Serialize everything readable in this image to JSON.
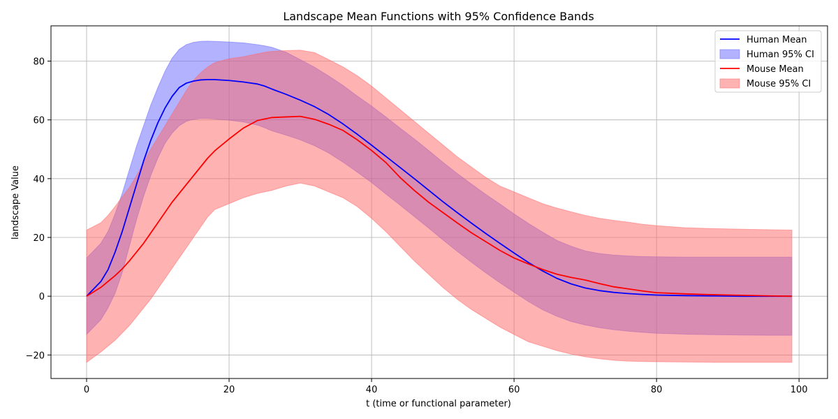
{
  "chart_data": {
    "type": "line",
    "title": "Landscape Mean Functions with 95% Confidence Bands",
    "xlabel": "t (time or functional parameter)",
    "ylabel": "landscape Value",
    "xlim": [
      -5,
      104
    ],
    "ylim": [
      -28,
      92
    ],
    "x_ticks": [
      0,
      20,
      40,
      60,
      80,
      100
    ],
    "y_ticks": [
      -20,
      0,
      20,
      40,
      60,
      80
    ],
    "grid": true,
    "legend_position": "top-right",
    "x": [
      0,
      2,
      3,
      4,
      5,
      6,
      7,
      8,
      9,
      10,
      11,
      12,
      13,
      14,
      15,
      16,
      17,
      18,
      20,
      22,
      24,
      25,
      26,
      28,
      30,
      32,
      34,
      36,
      38,
      40,
      42,
      44,
      46,
      48,
      50,
      52,
      54,
      56,
      58,
      60,
      62,
      64,
      66,
      68,
      70,
      72,
      74,
      76,
      78,
      80,
      84,
      88,
      92,
      96,
      99
    ],
    "series": [
      {
        "name": "Human Mean",
        "kind": "line",
        "color": "#0000ff",
        "values": [
          0,
          5,
          9,
          15,
          22,
          30,
          38,
          46,
          53,
          59,
          64,
          68,
          71,
          72.5,
          73.2,
          73.6,
          73.7,
          73.7,
          73.4,
          72.9,
          72.2,
          71.5,
          70.5,
          68.7,
          66.7,
          64.5,
          61.8,
          58.6,
          55.1,
          51.4,
          47.6,
          43.8,
          40.0,
          36.1,
          32.2,
          28.5,
          24.9,
          21.4,
          18.0,
          14.7,
          11.5,
          8.6,
          6.1,
          4.2,
          2.8,
          1.9,
          1.3,
          0.9,
          0.6,
          0.4,
          0.2,
          0.1,
          0.0,
          0.0,
          0.0
        ]
      },
      {
        "name": "Human 95% CI",
        "kind": "band",
        "color": "#6666ff",
        "lower": [
          -13,
          -8,
          -4,
          1,
          8,
          17,
          26,
          34,
          41,
          47,
          52,
          55.5,
          58,
          59.5,
          60.2,
          60.5,
          60.5,
          60.3,
          59.9,
          59.3,
          58.2,
          57.3,
          56.3,
          54.8,
          53.2,
          51.2,
          48.7,
          45.6,
          42.2,
          38.7,
          34.8,
          31.0,
          27.1,
          23.2,
          19.2,
          15.3,
          11.6,
          8.0,
          4.6,
          1.4,
          -1.8,
          -4.6,
          -6.8,
          -8.6,
          -9.8,
          -10.7,
          -11.4,
          -11.9,
          -12.3,
          -12.6,
          -12.9,
          -13.1,
          -13.2,
          -13.3,
          -13.3
        ],
        "upper": [
          13,
          18,
          22,
          28,
          35,
          43,
          51,
          58,
          65,
          71,
          76.5,
          81,
          84,
          85.6,
          86.4,
          86.7,
          86.8,
          86.7,
          86.5,
          86.2,
          85.6,
          85.2,
          84.7,
          83.0,
          80.5,
          77.9,
          74.9,
          71.7,
          68.1,
          64.7,
          61.0,
          57.2,
          53.5,
          49.6,
          45.6,
          41.8,
          38.2,
          34.7,
          31.4,
          28.0,
          24.8,
          21.8,
          19.0,
          17.0,
          15.4,
          14.5,
          14.0,
          13.7,
          13.5,
          13.4,
          13.3,
          13.3,
          13.3,
          13.3,
          13.3
        ]
      },
      {
        "name": "Mouse Mean",
        "kind": "line",
        "color": "#ff0000",
        "values": [
          0,
          3,
          5,
          7,
          9.3,
          12,
          15,
          18,
          21.5,
          25,
          28.5,
          32,
          35,
          38,
          41,
          44,
          47,
          49.5,
          53.5,
          57.2,
          59.8,
          60.3,
          60.8,
          61.0,
          61.2,
          60.2,
          58.5,
          56.4,
          53.2,
          49.6,
          45.5,
          40.4,
          36.0,
          32.0,
          28.5,
          25.0,
          21.6,
          18.6,
          15.6,
          13.0,
          11.0,
          9.1,
          7.5,
          6.4,
          5.5,
          4.3,
          3.2,
          2.5,
          1.8,
          1.2,
          0.8,
          0.5,
          0.3,
          0.1,
          0.0
        ]
      },
      {
        "name": "Mouse 95% CI",
        "kind": "band",
        "color": "#ff6666",
        "lower": [
          -22.5,
          -19,
          -17,
          -15,
          -12.5,
          -10,
          -7,
          -4,
          -1,
          2.5,
          6,
          9.5,
          13,
          16.5,
          20,
          23.5,
          27,
          29.5,
          31.5,
          33.5,
          35,
          35.5,
          36,
          37.5,
          38.5,
          37.5,
          35.5,
          33.5,
          30.5,
          26.5,
          22,
          17,
          12,
          7.5,
          3,
          -1,
          -4.5,
          -7.5,
          -10.5,
          -13,
          -15.5,
          -17,
          -18.5,
          -19.7,
          -20.6,
          -21.3,
          -21.8,
          -22.1,
          -22.2,
          -22.3,
          -22.4,
          -22.5,
          -22.5,
          -22.5,
          -22.5
        ],
        "upper": [
          22.5,
          25,
          27.5,
          30.5,
          33.8,
          37,
          41,
          45.5,
          50,
          54,
          58,
          62,
          66,
          70,
          73.5,
          76,
          78,
          79.5,
          80.8,
          81.5,
          82.5,
          83,
          83.3,
          83.6,
          83.7,
          82.9,
          80.5,
          78,
          75,
          71.5,
          67.5,
          63.5,
          59.5,
          55.5,
          51.5,
          47.5,
          44,
          40.5,
          37.5,
          35.5,
          33.5,
          31.5,
          30,
          28.7,
          27.5,
          26.5,
          25.8,
          25.2,
          24.5,
          24,
          23.3,
          23,
          22.8,
          22.6,
          22.5
        ]
      }
    ]
  }
}
